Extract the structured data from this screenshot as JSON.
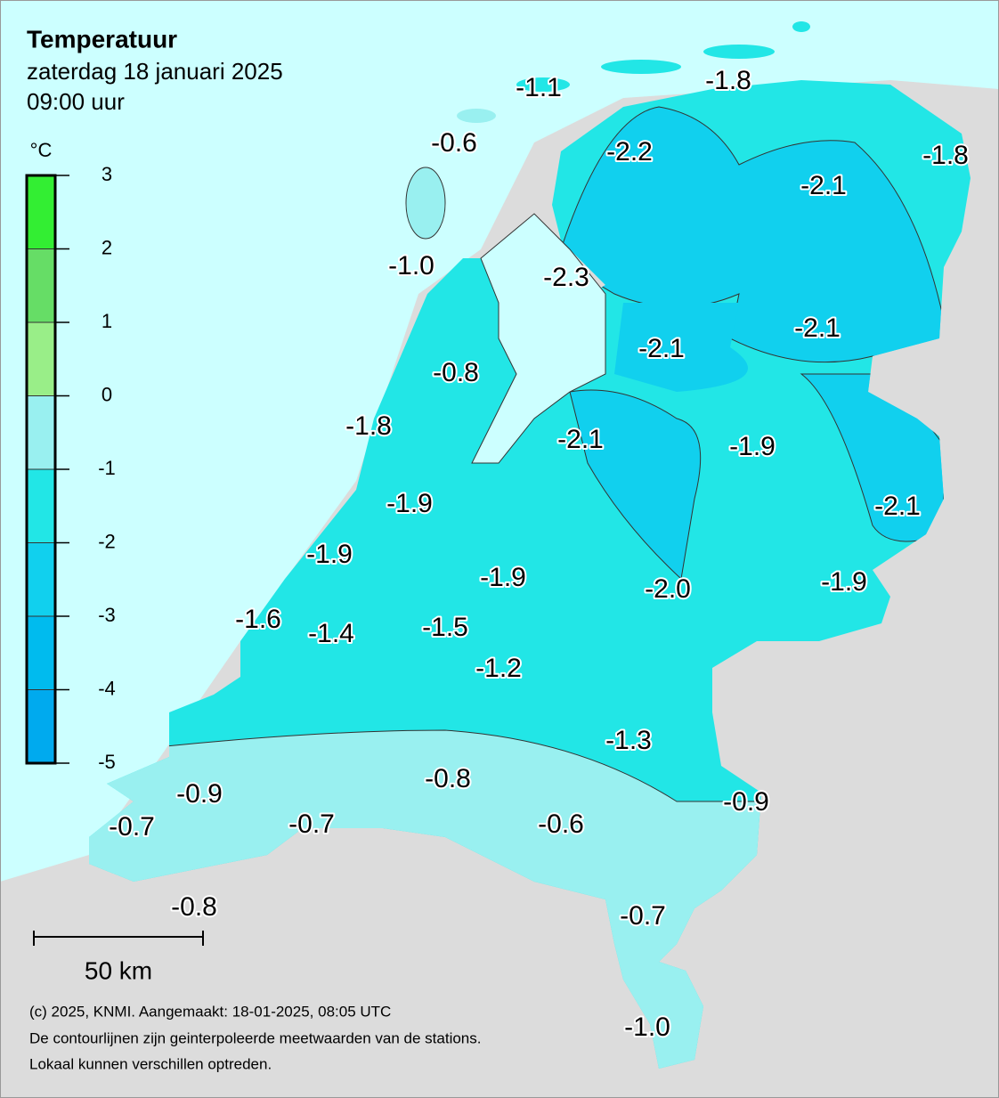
{
  "header": {
    "title": "Temperatuur",
    "date": "zaterdag 18 januari 2025",
    "time": "09:00 uur"
  },
  "legend": {
    "unit": "°C",
    "ticks": [
      3,
      2,
      1,
      0,
      -1,
      -2,
      -3,
      -4,
      -5
    ]
  },
  "stations": [
    "-1.1",
    "-1.8",
    "-0.6",
    "-2.2",
    "-1.8",
    "-2.1",
    "-1.0",
    "-2.3",
    "-2.1",
    "-2.1",
    "-0.8",
    "-1.8",
    "-2.1",
    "-1.9",
    "-1.9",
    "-2.1",
    "-1.9",
    "-1.9",
    "-2.0",
    "-1.9",
    "-1.6",
    "-1.4",
    "-1.5",
    "-1.2",
    "-1.3",
    "-0.8",
    "-0.9",
    "-0.9",
    "-0.7",
    "-0.7",
    "-0.6",
    "-0.8",
    "-0.7",
    "-1.0"
  ],
  "scale": "50 km",
  "footer": [
    "(c) 2025, KNMI. Aangemaakt: 18-01-2025, 08:05 UTC",
    "De contourlijnen zijn geinterpoleerde meetwaarden van de stations.",
    "Lokaal kunnen verschillen optreden."
  ]
}
